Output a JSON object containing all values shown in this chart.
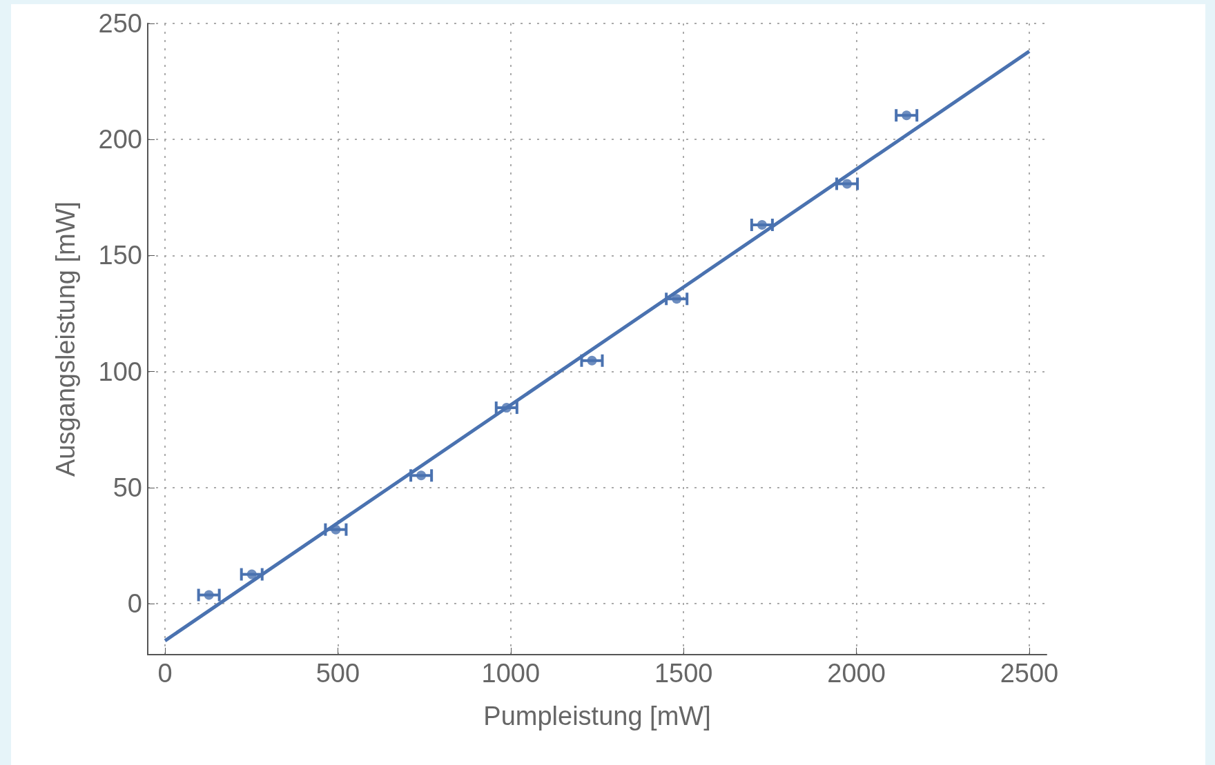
{
  "chart_data": {
    "type": "scatter",
    "xlabel": "Pumpleistung [mW]",
    "ylabel": "Ausgangsleistung [mW]",
    "xlim": [
      -50,
      2550
    ],
    "ylim": [
      -22,
      250
    ],
    "xticks": [
      0,
      500,
      1000,
      1500,
      2000,
      2500
    ],
    "yticks": [
      0,
      50,
      100,
      150,
      200,
      250
    ],
    "grid": true,
    "marker": "circle",
    "series": [
      {
        "color": "#4a72b0",
        "x": [
          127,
          251,
          494,
          741,
          988,
          1235,
          1480,
          1727,
          1973,
          2145
        ],
        "values": [
          3.7,
          12.6,
          31.9,
          55.2,
          84.4,
          104.7,
          131.3,
          163.2,
          180.9,
          210.4
        ],
        "xerrors": [
          30,
          30,
          30,
          30,
          30,
          30,
          30,
          30,
          30,
          30
        ]
      },
      {
        "type": "line",
        "color": "#4a72b0",
        "marker": "none",
        "line_style": "solid",
        "x": [
          0,
          2500
        ],
        "values": [
          -16,
          238
        ]
      }
    ]
  }
}
